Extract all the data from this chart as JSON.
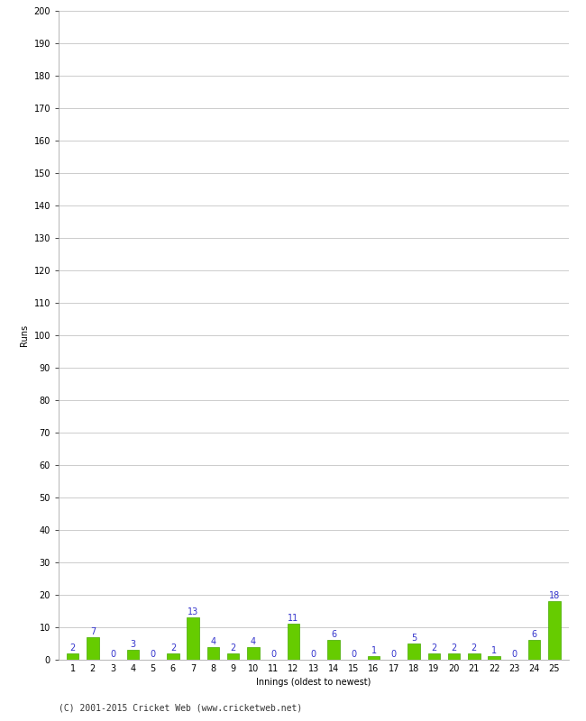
{
  "innings": [
    1,
    2,
    3,
    4,
    5,
    6,
    7,
    8,
    9,
    10,
    11,
    12,
    13,
    14,
    15,
    16,
    17,
    18,
    19,
    20,
    21,
    22,
    23,
    24,
    25
  ],
  "runs": [
    2,
    7,
    0,
    3,
    0,
    2,
    13,
    4,
    2,
    4,
    0,
    11,
    0,
    6,
    0,
    1,
    0,
    5,
    2,
    2,
    2,
    1,
    0,
    6,
    18
  ],
  "bar_color": "#66cc00",
  "bar_edge_color": "#44aa00",
  "label_color": "#3333cc",
  "background_color": "#ffffff",
  "grid_color": "#cccccc",
  "ylabel": "Runs",
  "xlabel": "Innings (oldest to newest)",
  "ylim": [
    0,
    200
  ],
  "yticks": [
    0,
    10,
    20,
    30,
    40,
    50,
    60,
    70,
    80,
    90,
    100,
    110,
    120,
    130,
    140,
    150,
    160,
    170,
    180,
    190,
    200
  ],
  "footer": "(C) 2001-2015 Cricket Web (www.cricketweb.net)",
  "label_fontsize": 7,
  "tick_fontsize": 7,
  "footer_fontsize": 7,
  "value_label_fontsize": 7
}
